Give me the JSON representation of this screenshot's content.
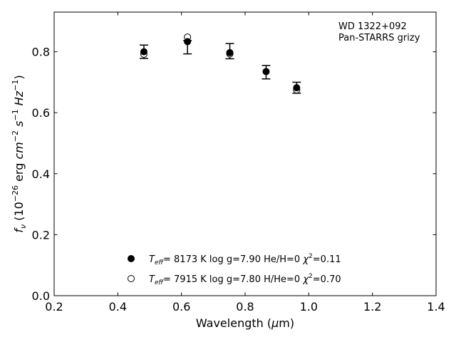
{
  "chart_data": {
    "type": "scatter",
    "annotation": [
      "WD 1322+092",
      "Pan-STARRS grizy"
    ],
    "xlabel": "Wavelength (μm)",
    "ylabel": "f_ν (10^-26 erg cm^-2 s^-1 Hz^-1)",
    "xlim": [
      0.2,
      1.4
    ],
    "ylim": [
      0.0,
      0.93
    ],
    "xticks": [
      0.2,
      0.4,
      0.6,
      0.8,
      1.0,
      1.2,
      1.4
    ],
    "xtick_labels": [
      "0.2",
      "0.4",
      "0.6",
      "0.8",
      "1.0",
      "1.2",
      "1.4"
    ],
    "yticks": [
      0.0,
      0.2,
      0.4,
      0.6,
      0.8
    ],
    "ytick_labels": [
      "0.0",
      "0.2",
      "0.4",
      "0.6",
      "0.8"
    ],
    "grid": false,
    "legend_position": "bottom-center",
    "observed": {
      "x": [
        0.482,
        0.619,
        0.752,
        0.866,
        0.962
      ],
      "y": [
        0.8,
        0.815,
        0.802,
        0.733,
        0.682
      ],
      "yerr": [
        0.022,
        0.022,
        0.025,
        0.022,
        0.018
      ]
    },
    "series": [
      {
        "marker": "filled-circle",
        "x": [
          0.482,
          0.619,
          0.752,
          0.866,
          0.962
        ],
        "y": [
          0.8,
          0.833,
          0.797,
          0.735,
          0.682
        ],
        "legend": {
          "teff": "8173 K",
          "logg": "log g=7.90",
          "comp": "He/H=0",
          "chi2": "=0.11"
        }
      },
      {
        "marker": "open-circle",
        "x": [
          0.482,
          0.619,
          0.752,
          0.962
        ],
        "y": [
          0.792,
          0.848,
          0.793,
          0.675
        ],
        "legend": {
          "teff": "7915 K",
          "logg": "log g=7.80",
          "comp": "H/He=0",
          "chi2": "=0.70"
        }
      }
    ]
  }
}
